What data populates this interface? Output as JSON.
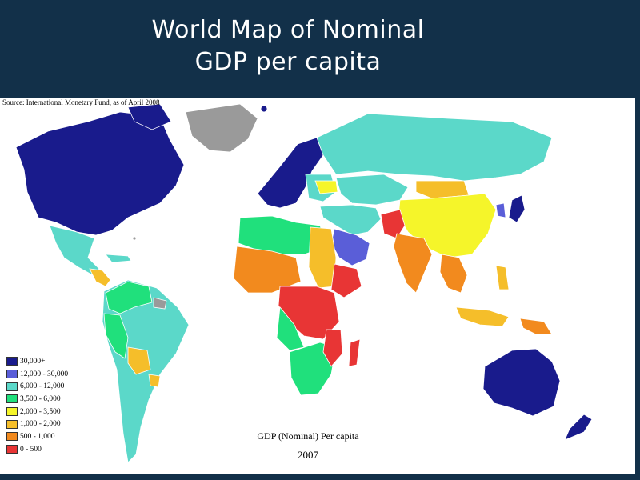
{
  "slide": {
    "title_line1": "World Map of Nominal",
    "title_line2": "GDP per capita"
  },
  "map": {
    "source": "Source: International Monetary Fund, as of April 2008",
    "caption_title": "GDP (Nominal) Per capita",
    "caption_year": "2007",
    "colors": {
      "c30000": "#191b8c",
      "c12000": "#5a5ed8",
      "c6000": "#5bd8c9",
      "c3500": "#20e07c",
      "c2000": "#f5f52a",
      "c1000": "#f5be2a",
      "c500": "#f28a1e",
      "c0": "#e83535",
      "nodata": "#9a9a9a"
    },
    "legend": [
      {
        "label": "30,000+",
        "color": "#191b8c"
      },
      {
        "label": "12,000 - 30,000",
        "color": "#5a5ed8"
      },
      {
        "label": "6,000 - 12,000",
        "color": "#5bd8c9"
      },
      {
        "label": "3,500 - 6,000",
        "color": "#20e07c"
      },
      {
        "label": "2,000 - 3,500",
        "color": "#f5f52a"
      },
      {
        "label": "1,000 - 2,000",
        "color": "#f5be2a"
      },
      {
        "label": "500 - 1,000",
        "color": "#f28a1e"
      },
      {
        "label": "0 - 500",
        "color": "#e83535"
      }
    ]
  }
}
